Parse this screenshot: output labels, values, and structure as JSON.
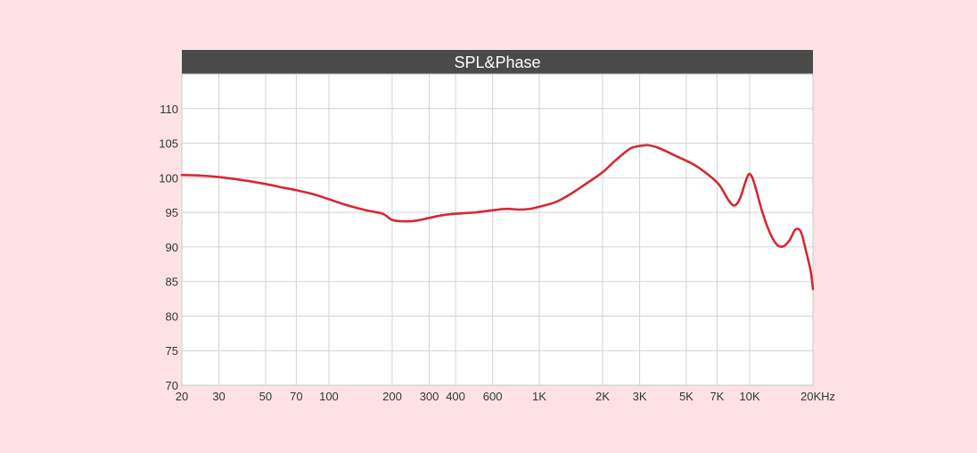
{
  "chart_data": {
    "type": "line",
    "title": "SPL&Phase",
    "xscale": "log",
    "xlim": [
      20,
      20000
    ],
    "ylim": [
      70,
      115
    ],
    "xticks": [
      20,
      30,
      50,
      70,
      100,
      200,
      300,
      400,
      600,
      1000,
      2000,
      3000,
      5000,
      7000,
      10000,
      20000
    ],
    "xtick_labels": [
      "20",
      "30",
      "50",
      "70",
      "100",
      "200",
      "300",
      "400",
      "600",
      "1K",
      "2K",
      "3K",
      "5K",
      "7K",
      "10K",
      "20KHz"
    ],
    "yticks": [
      70,
      75,
      80,
      85,
      90,
      95,
      100,
      105,
      110
    ],
    "ytick_labels": [
      "70",
      "75",
      "80",
      "85",
      "90",
      "95",
      "100",
      "105",
      "110"
    ],
    "grid": true,
    "legend": "none",
    "colors": {
      "title_bar": "#4a4a4a",
      "line": "#d42a33",
      "plot_bg": "#ffffff",
      "page_bg": "#ffe3e4",
      "grid": "#d4d4d4"
    },
    "series": [
      {
        "x": [
          20,
          25,
          30,
          40,
          50,
          60,
          70,
          85,
          100,
          120,
          150,
          180,
          200,
          230,
          260,
          300,
          350,
          400,
          500,
          600,
          700,
          800,
          900,
          1000,
          1200,
          1400,
          1700,
          2000,
          2300,
          2700,
          3000,
          3300,
          3700,
          4500,
          5500,
          6500,
          7200,
          8000,
          8500,
          9000,
          9500,
          9900,
          10300,
          10800,
          11500,
          12500,
          13500,
          14500,
          15500,
          16500,
          17500,
          18500,
          19500,
          20000
        ],
        "values": [
          100.4,
          100.3,
          100.1,
          99.6,
          99.1,
          98.6,
          98.2,
          97.6,
          96.9,
          96.1,
          95.3,
          94.8,
          93.9,
          93.7,
          93.8,
          94.2,
          94.6,
          94.8,
          95.0,
          95.3,
          95.5,
          95.4,
          95.5,
          95.8,
          96.5,
          97.6,
          99.3,
          100.8,
          102.5,
          104.2,
          104.6,
          104.7,
          104.3,
          103.1,
          101.8,
          100.2,
          98.9,
          96.6,
          96.0,
          97.0,
          99.2,
          100.5,
          100.0,
          98.0,
          95.0,
          92.0,
          90.3,
          90.1,
          91.0,
          92.5,
          92.2,
          89.5,
          86.5,
          83.9
        ]
      }
    ]
  }
}
